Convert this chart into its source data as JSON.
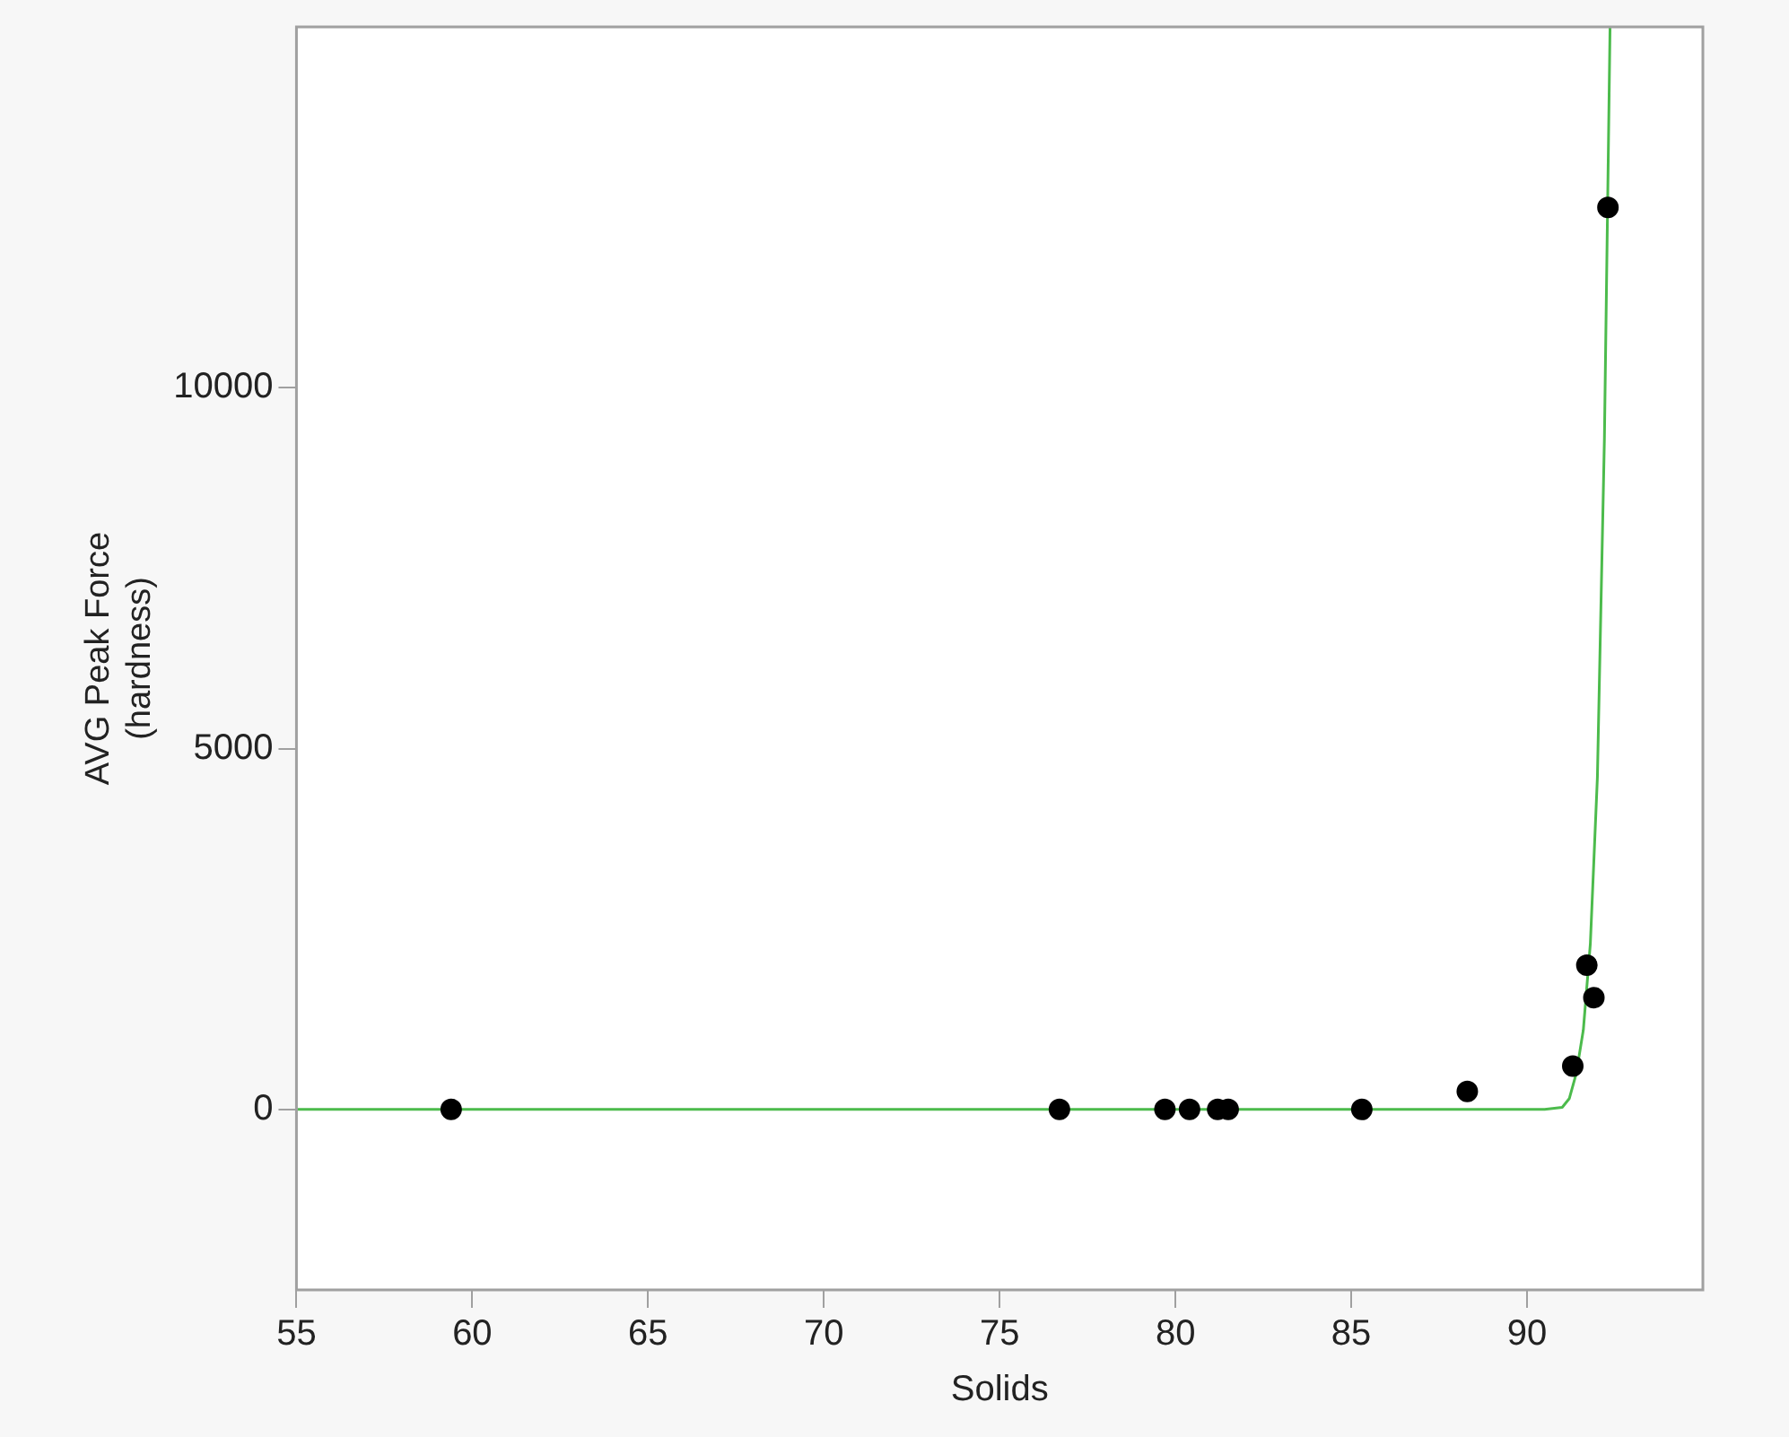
{
  "chart_data": {
    "type": "scatter",
    "xlabel": "Solids",
    "ylabel": "AVG Peak Force\n(hardness)",
    "xlim": [
      55,
      95
    ],
    "xticks": [
      55,
      60,
      65,
      70,
      75,
      80,
      85,
      90
    ],
    "ylim": [
      -2500,
      15000
    ],
    "yticks": [
      0,
      5000,
      10000
    ],
    "grid": false,
    "legend": false,
    "marker": "circle",
    "series": [
      {
        "color": "#000000",
        "x": [
          59.4,
          76.7,
          79.7,
          80.4,
          81.2,
          81.5,
          85.3,
          88.3,
          91.3,
          91.7,
          91.9,
          92.3
        ],
        "values": [
          0,
          0,
          0,
          0,
          0,
          0,
          0,
          250,
          600,
          2000,
          1550,
          12500
        ]
      },
      {
        "type": "line",
        "color": "#4cbb4c",
        "marker": "none",
        "x": [
          55,
          90.5,
          91.0,
          91.2,
          91.4,
          91.6,
          91.8,
          92.0,
          92.2,
          92.36
        ],
        "values": [
          0,
          0,
          30,
          150,
          500,
          1100,
          2300,
          4600,
          9300,
          15000
        ]
      }
    ]
  }
}
